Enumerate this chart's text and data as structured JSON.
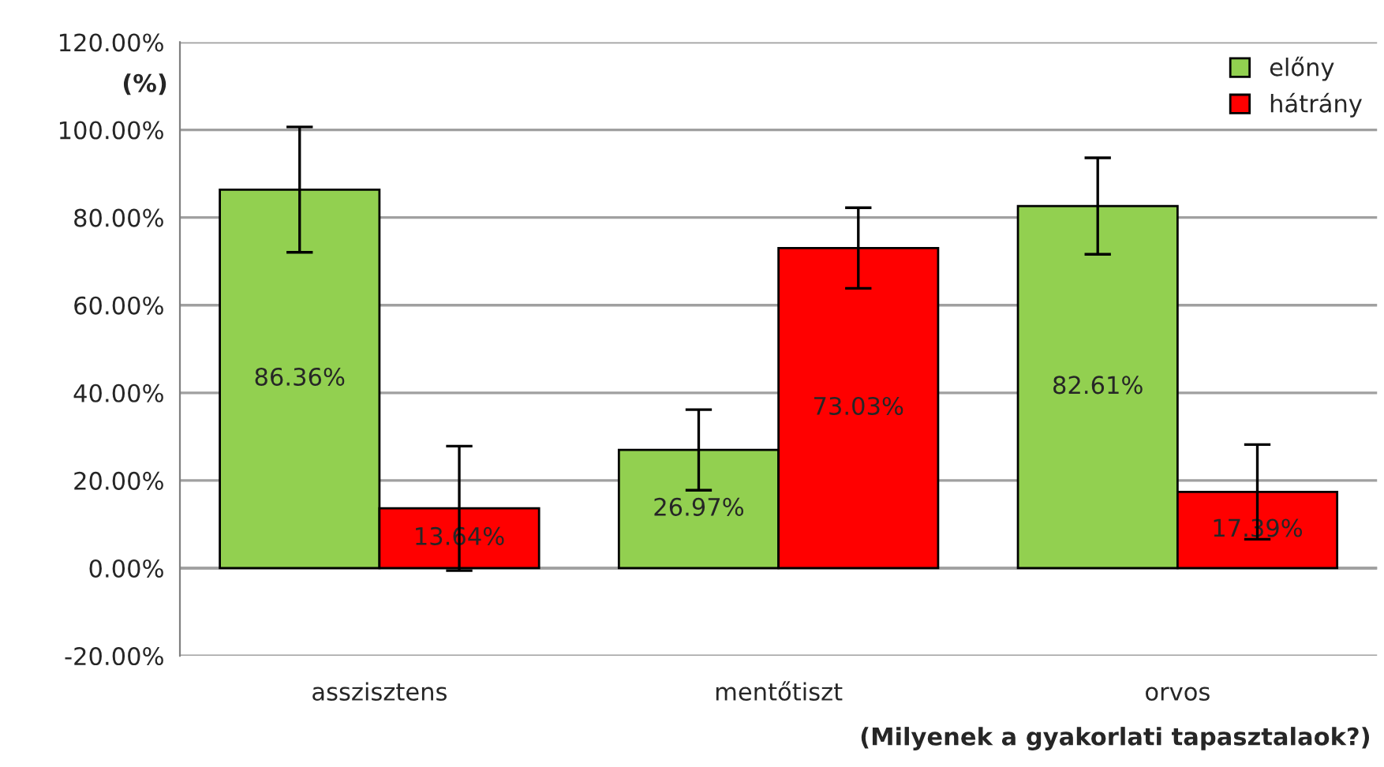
{
  "chart_data": {
    "type": "bar",
    "categories": [
      "asszisztens",
      "mentőtiszt",
      "orvos"
    ],
    "series": [
      {
        "name": "előny",
        "color": "#92d050",
        "values": [
          86.36,
          26.97,
          82.61
        ],
        "errors": [
          14.3,
          9.2,
          11
        ],
        "value_labels": [
          "86.36%",
          "26.97%",
          "82.61%"
        ]
      },
      {
        "name": "hátrány",
        "color": "#ff0000",
        "values": [
          13.64,
          73.03,
          17.39
        ],
        "errors": [
          14.2,
          9.2,
          10.8
        ],
        "value_labels": [
          "13.64%",
          "73.03%",
          "17.39%"
        ]
      }
    ],
    "ylabel": "(%)",
    "xlabel": "(Milyenek a gyakorlati tapasztalaok?)",
    "ylim": [
      -20,
      120
    ],
    "yticks": [
      {
        "value": -20,
        "label": "-20.00%"
      },
      {
        "value": 0,
        "label": "0.00%"
      },
      {
        "value": 20,
        "label": "20.00%"
      },
      {
        "value": 40,
        "label": "40.00%"
      },
      {
        "value": 60,
        "label": "60.00%"
      },
      {
        "value": 80,
        "label": "80.00%"
      },
      {
        "value": 100,
        "label": "100.00%"
      },
      {
        "value": 120,
        "label": "120.00%"
      }
    ],
    "grid": "y",
    "legend": "top right"
  }
}
